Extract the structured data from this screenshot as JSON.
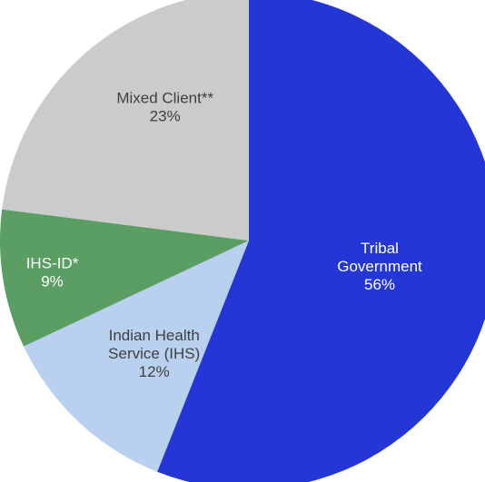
{
  "chart_data": {
    "type": "pie",
    "start": "12 o'clock",
    "direction": "clockwise",
    "slices": [
      {
        "id": "tribal-government",
        "label_lines": [
          "Tribal",
          "Government"
        ],
        "percent_label": "56%",
        "value": 56,
        "color": "#2436d6",
        "text_color": "#ffffff"
      },
      {
        "id": "indian-health-service",
        "label_lines": [
          "Indian Health",
          "Service (IHS)"
        ],
        "percent_label": "12%",
        "value": 12,
        "color": "#b9d1ef",
        "text_color": "#3f3f3f"
      },
      {
        "id": "ihs-id",
        "label_lines": [
          "IHS-ID*"
        ],
        "percent_label": "9%",
        "value": 9,
        "color": "#5a9e64",
        "text_color": "#ffffff"
      },
      {
        "id": "mixed-client",
        "label_lines": [
          "Mixed Client**"
        ],
        "percent_label": "23%",
        "value": 23,
        "color": "#cbcbcb",
        "text_color": "#3f3f3f"
      }
    ]
  }
}
